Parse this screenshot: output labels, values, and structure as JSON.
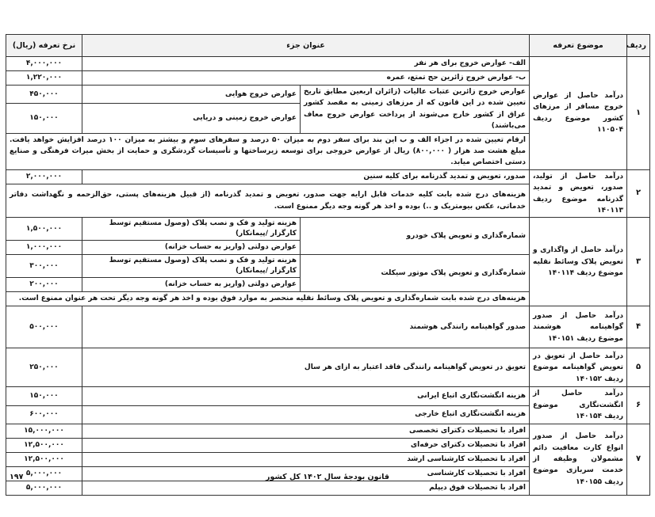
{
  "header": {
    "row": "ردیف",
    "subject": "موضوع تعرفه",
    "title": "عنوان جزء",
    "rate": "نرخ تعرفه (ریال)"
  },
  "rows": [
    {
      "num": "۱",
      "subject": "درآمد حاصل از عوارض خروج مسافر از مرزهای کشور موضوع ردیف ۱۱۰۵۰۴",
      "a_title": "الف- عوارض خروج برای هر نفر",
      "a_rate": "۴,۰۰۰,۰۰۰",
      "b_title": "ب- عوارض خروج زائرین حج تمتع، عمره",
      "b_rate": "۱,۲۲۰,۰۰۰",
      "c_title": "عوارض خروج زائرین عتبات عالیات (زائران اربعین مطابق تاریخ تعیین شده در این قانون که از مرزهای زمینی به مقصد کشور عراق از کشور خارج می‌شوند از پرداخت عوارض خروج معاف می‌باشند)",
      "c1_title": "عوارض خروج هوایی",
      "c1_rate": "۴۵۰,۰۰۰",
      "c2_title": "عوارض خروج زمینی و دریایی",
      "c2_rate": "۱۵۰,۰۰۰",
      "note": "ارقام تعیین شده در اجزاء الف و ب این بند برای سفر دوم به میزان ۵۰ درصد و سفرهای سوم و بیشتر به میزان ۱۰۰ درصد افزایش خواهد یافت. مبلغ هشت صد هزار ( ۸۰۰,۰۰۰) ریال از عوارض خروجی برای توسعه زیرساختها و تأسیسات گردشگری و حمایت از بخش میراث فرهنگی و صنایع دستی اختصاص میابد."
    },
    {
      "num": "۲",
      "subject": "درآمد حاصل از تولید، صدور، تعویض و تمدید گذرنامه موضوع ردیف ۱۴۰۱۱۳",
      "a_title": "صدور، تعویض و تمدید گذرنامه برای کلیه سنین",
      "a_rate": "۲,۰۰۰,۰۰۰",
      "note": "هزینه‌های درج شده بابت کلیه خدمات قابل ارایه جهت صدور، تعویض و تمدید گذرنامه (از قبیل هزینه‌های پستی، حق‌الزحمه و نگهداشت دفاتر خدماتی، عکس بیومتریک و ..) بوده و اخذ هر گونه وجه دیگر ممنوع است."
    },
    {
      "num": "۳",
      "subject": "درآمد حاصل از واگذاری و تعویض پلاک وسائط نقلیه موضوع ردیف ۱۴۰۱۱۴",
      "car_title": "شماره‌گذاری و تعویض پلاک خودرو",
      "moto_title": "شماره‌گذاری و تعویض پلاک موتور سیکلت",
      "car1_title": "هزینه تولید و فک و نصب پلاک (وصول مستقیم توسط کارگزار /پیمانکار)",
      "car1_rate": "۱,۵۰۰,۰۰۰",
      "car2_title": "عوارض دولتی (واریز به حساب خزانه)",
      "car2_rate": "۱,۰۰۰,۰۰۰",
      "moto1_title": "هزینه تولید و فک و نصب پلاک (وصول مستقیم توسط کارگزار /پیمانکار)",
      "moto1_rate": "۳۰۰,۰۰۰",
      "moto2_title": "عوارض دولتی (واریز به حساب خزانه)",
      "moto2_rate": "۲۰۰,۰۰۰",
      "note": "هزینه‌های درج شده بابت شماره‌گذاری و تعویض پلاک وسائط نقلیه منحصر به موارد فوق بوده و اخذ هر گونه وجه دیگر تحت هر عنوان ممنوع است."
    },
    {
      "num": "۴",
      "subject": "درآمد حاصل از صدور گواهینامه هوشمند موضوع ردیف ۱۴۰۱۵۱",
      "a_title": "صدور گواهینامه رانندگی هوشمند",
      "a_rate": "۵۰۰,۰۰۰"
    },
    {
      "num": "۵",
      "subject": "درآمد حاصل از تعویق در تعویض گواهینامه موضوع ردیف ۱۴۰۱۵۲",
      "a_title": "تعویق در تعویض گواهینامه رانندگی فاقد اعتبار به ازای هر سال",
      "a_rate": "۲۵۰,۰۰۰"
    },
    {
      "num": "۶",
      "subject": "درآمد حاصل از انگشت‌نگاری موضوع ردیف ۱۴۰۱۵۴",
      "a_title": "هزینه انگشت‌نگاری اتباع ایرانی",
      "a_rate": "۱۵۰,۰۰۰",
      "b_title": "هزینه انگشت‌نگاری اتباع خارجی",
      "b_rate": "۶۰۰,۰۰۰"
    },
    {
      "num": "۷",
      "subject": "درآمد حاصل از صدور انواع کارت معافیت دائم مشمولان وظیفه از خدمت سربازی موضوع ردیف ۱۴۰۱۵۵",
      "items": [
        {
          "title": "افراد با تحصیلات دکترای تخصصی",
          "rate": "۱۵,۰۰۰,۰۰۰"
        },
        {
          "title": "افراد با تحصیلات دکترای حرفه‌ای",
          "rate": "۱۲,۵۰۰,۰۰۰"
        },
        {
          "title": "افراد با تحصیلات کارشناسی ارشد",
          "rate": "۱۲,۵۰۰,۰۰۰"
        },
        {
          "title": "افراد با تحصیلات کارشناسی",
          "rate": "۵,۰۰۰,۰۰۰"
        },
        {
          "title": "افراد با تحصیلات فوق دیپلم",
          "rate": "۵,۰۰۰,۰۰۰"
        }
      ]
    }
  ],
  "footer": {
    "page": "۱۹۷",
    "title": "قانون بودجهٔ سال ۱۴۰۲ کل کشور"
  }
}
